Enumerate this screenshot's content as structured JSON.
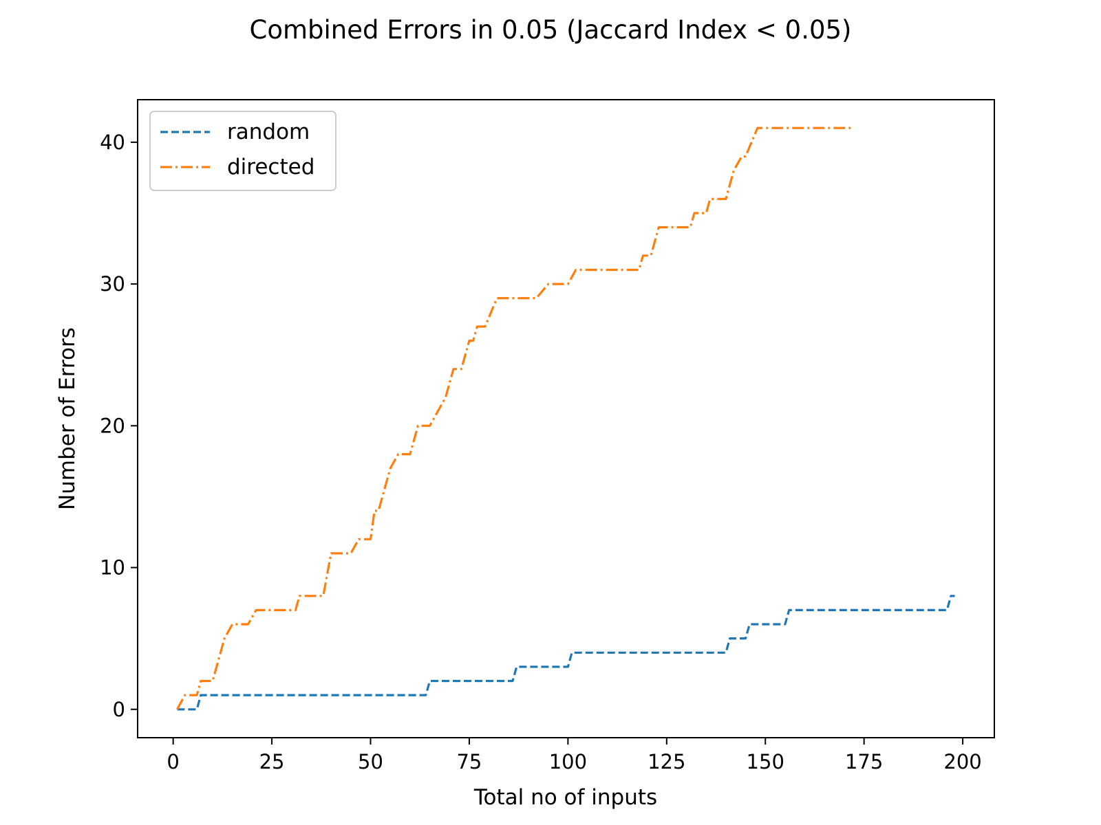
{
  "chart_data": {
    "type": "line",
    "title": "Combined Errors in 0.05 (Jaccard Index < 0.05)",
    "xlabel": "Total no of inputs",
    "ylabel": "Number of Errors",
    "xlim": [
      -9,
      208
    ],
    "ylim": [
      -2,
      43
    ],
    "xticks": [
      0,
      25,
      50,
      75,
      100,
      125,
      150,
      175,
      200
    ],
    "yticks": [
      0,
      10,
      20,
      30,
      40
    ],
    "legend_position": "top-left",
    "grid": false,
    "series": [
      {
        "name": "random",
        "color": "#1f77b4",
        "style": "dashed",
        "points": [
          [
            1,
            0
          ],
          [
            6,
            0
          ],
          [
            7,
            1
          ],
          [
            64,
            1
          ],
          [
            65,
            2
          ],
          [
            86,
            2
          ],
          [
            87,
            3
          ],
          [
            100,
            3
          ],
          [
            101,
            4
          ],
          [
            140,
            4
          ],
          [
            141,
            5
          ],
          [
            145,
            5
          ],
          [
            146,
            6
          ],
          [
            155,
            6
          ],
          [
            156,
            7
          ],
          [
            196,
            7
          ],
          [
            197,
            8
          ],
          [
            198,
            8
          ]
        ]
      },
      {
        "name": "directed",
        "color": "#ff7f0e",
        "style": "dashdot",
        "points": [
          [
            1,
            0
          ],
          [
            3,
            1
          ],
          [
            6,
            1
          ],
          [
            7,
            2
          ],
          [
            10,
            2
          ],
          [
            12,
            4
          ],
          [
            13,
            5
          ],
          [
            15,
            6
          ],
          [
            19,
            6
          ],
          [
            21,
            7
          ],
          [
            31,
            7
          ],
          [
            32,
            8
          ],
          [
            38,
            8
          ],
          [
            40,
            11
          ],
          [
            45,
            11
          ],
          [
            47,
            12
          ],
          [
            50,
            12
          ],
          [
            51,
            14
          ],
          [
            52,
            14
          ],
          [
            55,
            17
          ],
          [
            57,
            18
          ],
          [
            60,
            18
          ],
          [
            62,
            20
          ],
          [
            65,
            20
          ],
          [
            67,
            21
          ],
          [
            69,
            22
          ],
          [
            71,
            24
          ],
          [
            73,
            24
          ],
          [
            75,
            26
          ],
          [
            76,
            26
          ],
          [
            77,
            27
          ],
          [
            79,
            27
          ],
          [
            82,
            29
          ],
          [
            92,
            29
          ],
          [
            95,
            30
          ],
          [
            100,
            30
          ],
          [
            102,
            31
          ],
          [
            118,
            31
          ],
          [
            119,
            32
          ],
          [
            121,
            32
          ],
          [
            123,
            34
          ],
          [
            131,
            34
          ],
          [
            132,
            35
          ],
          [
            135,
            35
          ],
          [
            136,
            36
          ],
          [
            140,
            36
          ],
          [
            142,
            38
          ],
          [
            144,
            39
          ],
          [
            145,
            39
          ],
          [
            148,
            41
          ],
          [
            172,
            41
          ]
        ]
      }
    ]
  }
}
